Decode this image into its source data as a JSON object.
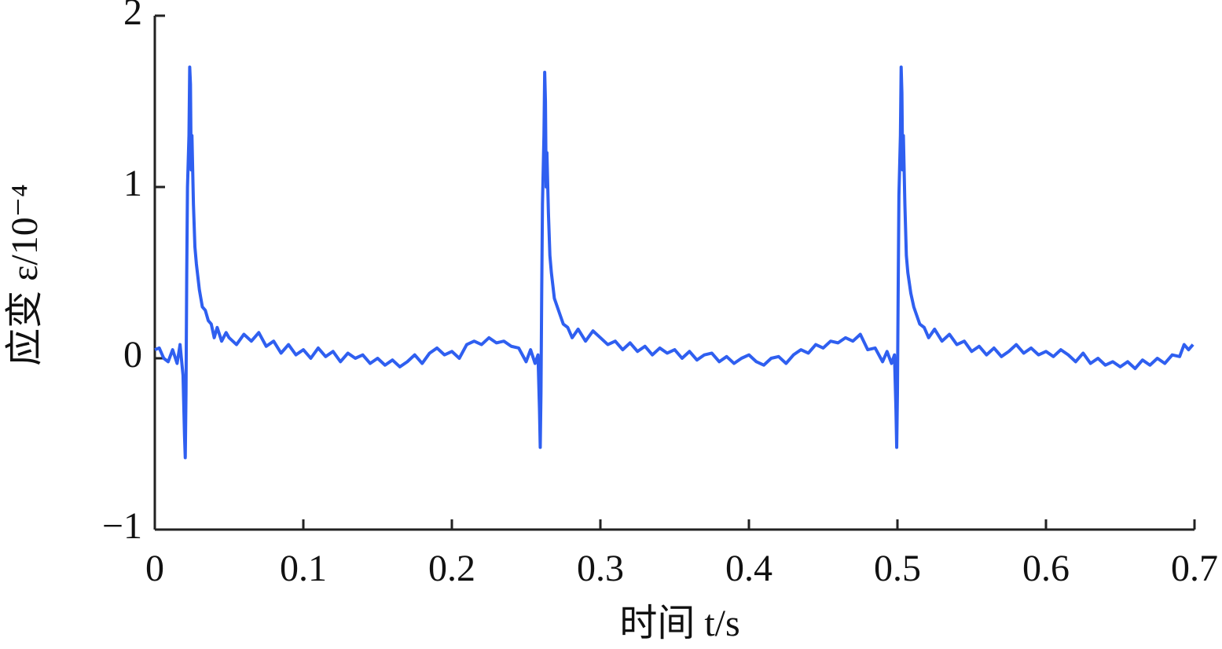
{
  "chart_data": {
    "type": "line",
    "xlabel": "时间 t/s",
    "ylabel": "应变 ε/10⁻⁴",
    "color": "#2f5ff0",
    "xlim": [
      0,
      0.7
    ],
    "ylim": [
      -1,
      2
    ],
    "xticks": [
      0,
      0.1,
      0.2,
      0.3,
      0.4,
      0.5,
      0.6,
      0.7
    ],
    "yticks": [
      {
        "value": -1,
        "label": "−1"
      },
      0,
      1,
      2
    ],
    "x": [
      0,
      0.003,
      0.006,
      0.009,
      0.012,
      0.015,
      0.017,
      0.019,
      0.02,
      0.0205,
      0.021,
      0.0215,
      0.022,
      0.023,
      0.0235,
      0.024,
      0.0245,
      0.025,
      0.026,
      0.027,
      0.028,
      0.03,
      0.032,
      0.034,
      0.036,
      0.038,
      0.04,
      0.042,
      0.045,
      0.048,
      0.05,
      0.055,
      0.06,
      0.065,
      0.07,
      0.075,
      0.08,
      0.085,
      0.09,
      0.095,
      0.1,
      0.105,
      0.11,
      0.115,
      0.12,
      0.125,
      0.13,
      0.135,
      0.14,
      0.145,
      0.15,
      0.155,
      0.16,
      0.165,
      0.17,
      0.175,
      0.18,
      0.185,
      0.19,
      0.195,
      0.2,
      0.205,
      0.21,
      0.215,
      0.22,
      0.225,
      0.23,
      0.235,
      0.24,
      0.245,
      0.25,
      0.253,
      0.256,
      0.258,
      0.259,
      0.2595,
      0.26,
      0.2605,
      0.261,
      0.262,
      0.2625,
      0.263,
      0.2635,
      0.264,
      0.265,
      0.266,
      0.267,
      0.269,
      0.271,
      0.273,
      0.275,
      0.278,
      0.281,
      0.285,
      0.29,
      0.295,
      0.3,
      0.305,
      0.31,
      0.315,
      0.32,
      0.325,
      0.33,
      0.335,
      0.34,
      0.345,
      0.35,
      0.355,
      0.36,
      0.365,
      0.37,
      0.375,
      0.38,
      0.385,
      0.39,
      0.395,
      0.4,
      0.405,
      0.41,
      0.415,
      0.42,
      0.425,
      0.43,
      0.435,
      0.44,
      0.445,
      0.45,
      0.455,
      0.46,
      0.465,
      0.47,
      0.475,
      0.48,
      0.485,
      0.49,
      0.493,
      0.496,
      0.498,
      0.499,
      0.4995,
      0.5,
      0.5005,
      0.501,
      0.502,
      0.5025,
      0.503,
      0.5035,
      0.504,
      0.505,
      0.506,
      0.507,
      0.509,
      0.511,
      0.513,
      0.515,
      0.518,
      0.521,
      0.525,
      0.53,
      0.535,
      0.54,
      0.545,
      0.55,
      0.555,
      0.56,
      0.565,
      0.57,
      0.575,
      0.58,
      0.585,
      0.59,
      0.595,
      0.6,
      0.605,
      0.61,
      0.615,
      0.62,
      0.625,
      0.63,
      0.635,
      0.64,
      0.645,
      0.65,
      0.655,
      0.66,
      0.665,
      0.67,
      0.675,
      0.68,
      0.685,
      0.69,
      0.693,
      0.696,
      0.699
    ],
    "values": [
      0.05,
      0.06,
      0.0,
      -0.02,
      0.05,
      -0.03,
      0.08,
      -0.1,
      -0.45,
      -0.58,
      -0.2,
      0.5,
      1.0,
      1.3,
      1.7,
      1.6,
      1.1,
      1.3,
      0.9,
      0.65,
      0.55,
      0.4,
      0.3,
      0.28,
      0.22,
      0.2,
      0.12,
      0.18,
      0.1,
      0.15,
      0.12,
      0.08,
      0.14,
      0.1,
      0.15,
      0.07,
      0.1,
      0.03,
      0.08,
      0.02,
      0.05,
      0.0,
      0.06,
      0.01,
      0.04,
      -0.02,
      0.03,
      0.0,
      0.02,
      -0.03,
      0.0,
      -0.04,
      -0.01,
      -0.05,
      -0.02,
      0.02,
      -0.03,
      0.03,
      0.06,
      0.02,
      0.04,
      0.0,
      0.08,
      0.1,
      0.08,
      0.12,
      0.09,
      0.1,
      0.07,
      0.06,
      -0.02,
      0.05,
      -0.03,
      0.02,
      -0.3,
      -0.52,
      -0.2,
      0.4,
      0.9,
      1.3,
      1.67,
      1.5,
      1.0,
      1.2,
      0.85,
      0.6,
      0.5,
      0.35,
      0.3,
      0.25,
      0.2,
      0.18,
      0.12,
      0.17,
      0.1,
      0.16,
      0.12,
      0.08,
      0.1,
      0.05,
      0.09,
      0.04,
      0.07,
      0.02,
      0.06,
      0.03,
      0.05,
      0.0,
      0.04,
      -0.01,
      0.02,
      0.03,
      -0.02,
      0.01,
      -0.03,
      0.0,
      0.02,
      -0.02,
      -0.04,
      0.0,
      0.01,
      -0.03,
      0.02,
      0.05,
      0.03,
      0.08,
      0.06,
      0.1,
      0.09,
      0.12,
      0.1,
      0.14,
      0.05,
      0.06,
      -0.02,
      0.04,
      -0.03,
      0.02,
      -0.3,
      -0.52,
      -0.2,
      0.4,
      0.95,
      1.3,
      1.7,
      1.55,
      1.1,
      1.3,
      0.9,
      0.6,
      0.5,
      0.38,
      0.3,
      0.25,
      0.2,
      0.18,
      0.12,
      0.17,
      0.1,
      0.14,
      0.08,
      0.1,
      0.04,
      0.07,
      0.02,
      0.06,
      0.01,
      0.04,
      0.08,
      0.03,
      0.06,
      0.02,
      0.04,
      0.01,
      0.05,
      0.02,
      -0.02,
      0.03,
      -0.03,
      0.0,
      -0.04,
      -0.02,
      -0.05,
      -0.02,
      -0.06,
      -0.01,
      -0.04,
      0.0,
      -0.03,
      0.02,
      0.01,
      0.08,
      0.05,
      0.08
    ]
  }
}
